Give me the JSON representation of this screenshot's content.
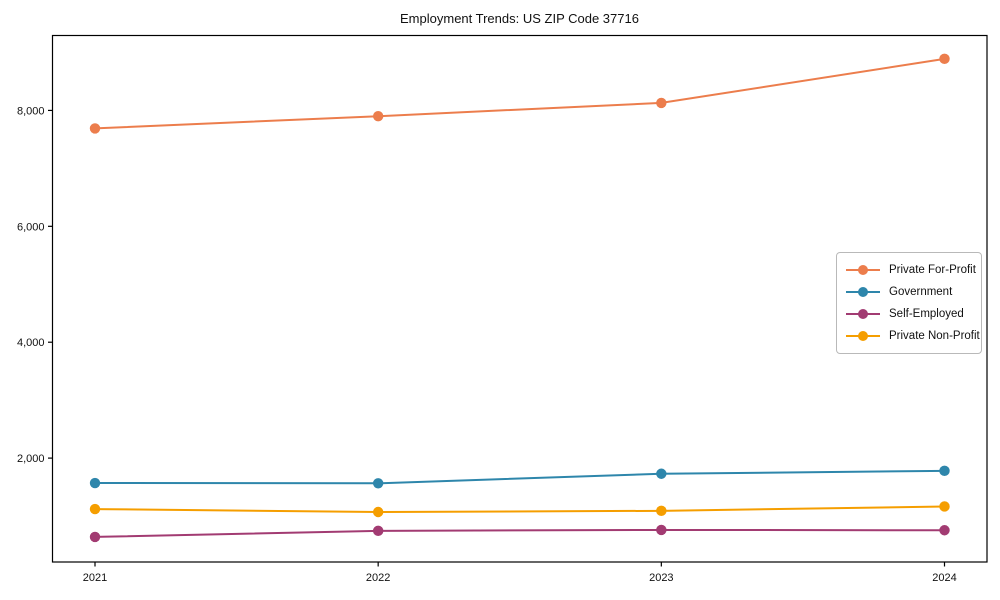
{
  "chart_data": {
    "type": "line",
    "title": "Employment Trends: US ZIP Code 37716",
    "xlabel": "",
    "ylabel": "",
    "categories": [
      "2021",
      "2022",
      "2023",
      "2024"
    ],
    "series": [
      {
        "name": "Private For-Profit",
        "color": "#ec7d4c",
        "values": [
          7690,
          7900,
          8130,
          8890
        ]
      },
      {
        "name": "Government",
        "color": "#2e86ab",
        "values": [
          1570,
          1565,
          1730,
          1780
        ]
      },
      {
        "name": "Self-Employed",
        "color": "#a23b72",
        "values": [
          640,
          745,
          760,
          755
        ]
      },
      {
        "name": "Private Non-Profit",
        "color": "#f59e00",
        "values": [
          1120,
          1070,
          1090,
          1165
        ]
      }
    ],
    "yticks": [
      2000,
      4000,
      6000,
      8000
    ],
    "ytick_labels": [
      "2,000",
      "4,000",
      "6,000",
      "8,000"
    ],
    "ylim": [
      207,
      9293
    ],
    "grid": false,
    "legend_position": "center-right",
    "marker": "circle",
    "frame": "full-box",
    "axis_color": "#000000",
    "text_color": "#111111"
  }
}
